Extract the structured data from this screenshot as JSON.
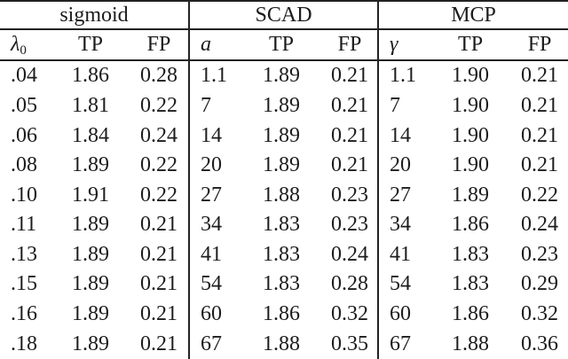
{
  "page": {
    "background": "#ffffff",
    "text_color": "#1c1c1c",
    "rule_color": "#222222"
  },
  "table": {
    "groups": [
      {
        "title": "sigmoid",
        "param": {
          "base": "λ",
          "sub": "0"
        },
        "tp_label": "TP",
        "fp_label": "FP"
      },
      {
        "title": "SCAD",
        "param": {
          "base": "a",
          "sub": ""
        },
        "tp_label": "TP",
        "fp_label": "FP"
      },
      {
        "title": "MCP",
        "param": {
          "base": "γ",
          "sub": ""
        },
        "tp_label": "TP",
        "fp_label": "FP"
      }
    ],
    "rows": [
      [
        ".04",
        "1.86",
        "0.28",
        "1.1",
        "1.89",
        "0.21",
        "1.1",
        "1.90",
        "0.21"
      ],
      [
        ".05",
        "1.81",
        "0.22",
        "7",
        "1.89",
        "0.21",
        "7",
        "1.90",
        "0.21"
      ],
      [
        ".06",
        "1.84",
        "0.24",
        "14",
        "1.89",
        "0.21",
        "14",
        "1.90",
        "0.21"
      ],
      [
        ".08",
        "1.89",
        "0.22",
        "20",
        "1.89",
        "0.21",
        "20",
        "1.90",
        "0.21"
      ],
      [
        ".10",
        "1.91",
        "0.22",
        "27",
        "1.88",
        "0.23",
        "27",
        "1.89",
        "0.22"
      ],
      [
        ".11",
        "1.89",
        "0.21",
        "34",
        "1.83",
        "0.23",
        "34",
        "1.86",
        "0.24"
      ],
      [
        ".13",
        "1.89",
        "0.21",
        "41",
        "1.83",
        "0.24",
        "41",
        "1.83",
        "0.23"
      ],
      [
        ".15",
        "1.89",
        "0.21",
        "54",
        "1.83",
        "0.28",
        "54",
        "1.83",
        "0.29"
      ],
      [
        ".16",
        "1.89",
        "0.21",
        "60",
        "1.86",
        "0.32",
        "60",
        "1.86",
        "0.32"
      ],
      [
        ".18",
        "1.89",
        "0.21",
        "67",
        "1.88",
        "0.35",
        "67",
        "1.88",
        "0.36"
      ]
    ]
  }
}
